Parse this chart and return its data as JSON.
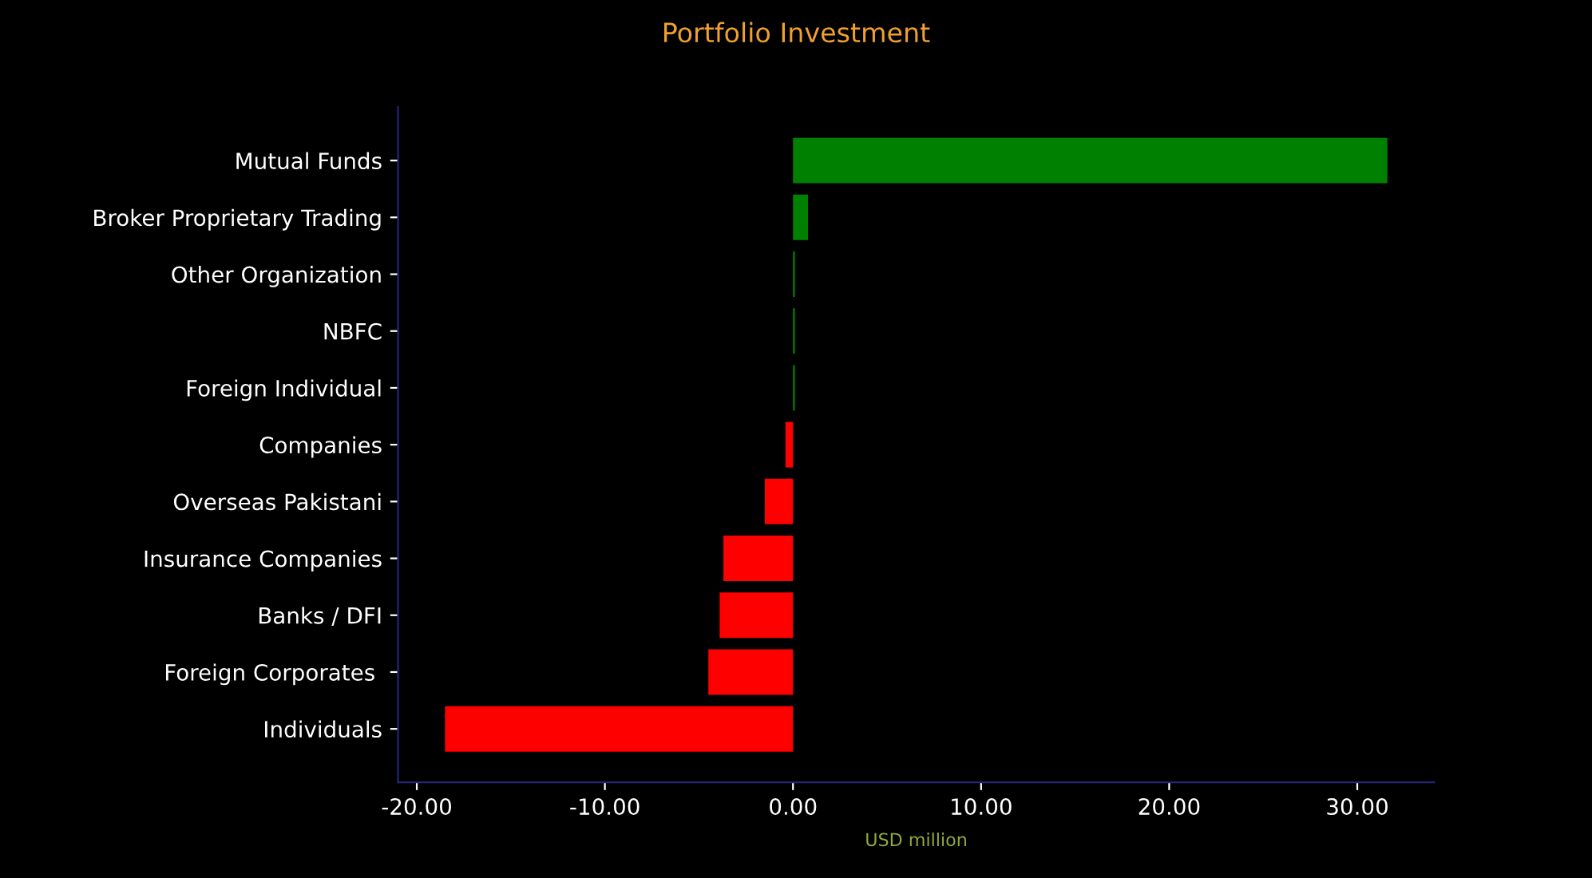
{
  "chart_data": {
    "type": "bar",
    "orientation": "horizontal",
    "title": "Portfolio Investment",
    "xlabel": "USD million",
    "categories": [
      "Mutual Funds",
      "Broker Proprietary Trading",
      "Other Organization",
      "NBFC",
      "Foreign Individual",
      "Companies",
      "Overseas Pakistani",
      "Insurance Companies",
      "Banks / DFI",
      "Foreign Corporates ",
      "Individuals"
    ],
    "values": [
      31.6,
      0.8,
      0.1,
      0.1,
      0.1,
      -0.4,
      -1.5,
      -3.7,
      -3.9,
      -4.5,
      -18.5
    ],
    "colors": [
      "#008000",
      "#008000",
      "#008000",
      "#008000",
      "#008000",
      "#ff0000",
      "#ff0000",
      "#ff0000",
      "#ff0000",
      "#ff0000",
      "#ff0000"
    ],
    "xlim": [
      -21.0,
      34.1
    ],
    "xticks": [
      {
        "value": -20,
        "label": "-20.00"
      },
      {
        "value": -10,
        "label": "-10.00"
      },
      {
        "value": 0,
        "label": "0.00"
      },
      {
        "value": 10,
        "label": "10.00"
      },
      {
        "value": 20,
        "label": "20.00"
      },
      {
        "value": 30,
        "label": "30.00"
      }
    ]
  }
}
